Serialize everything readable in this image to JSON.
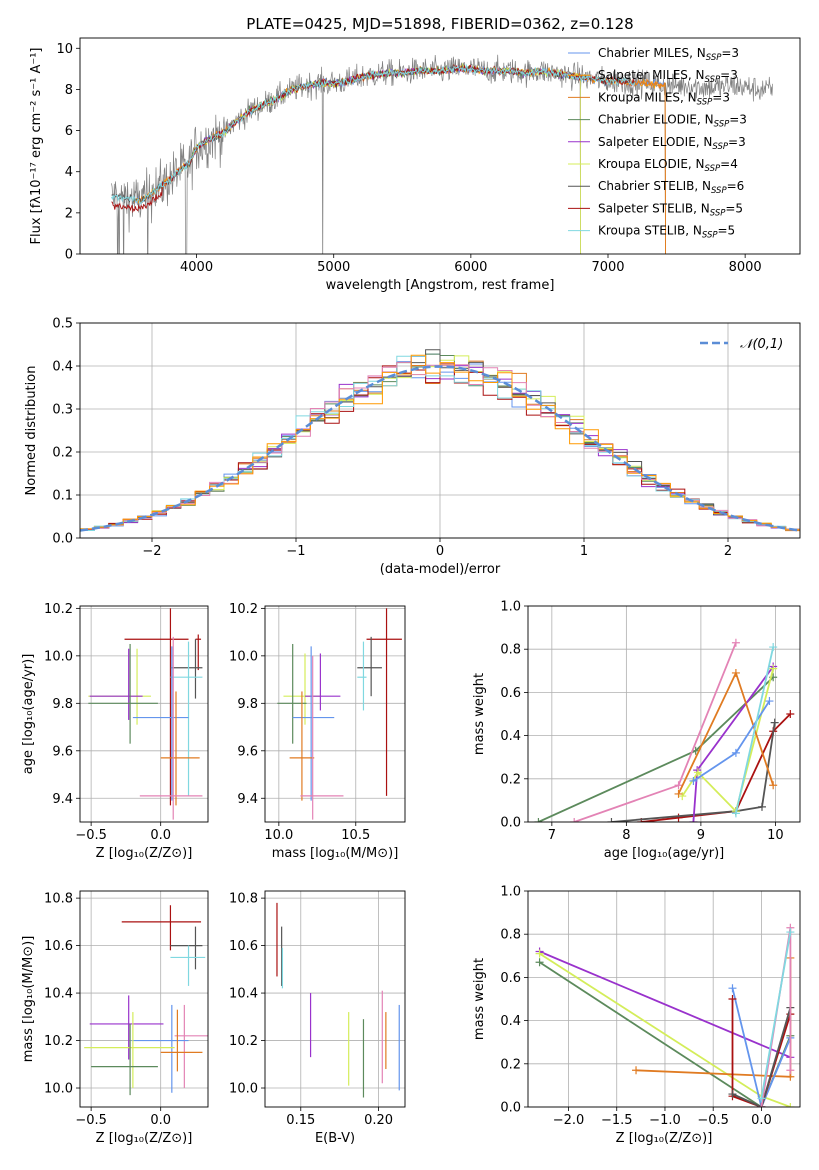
{
  "figure_title": "PLATE=0425, MJD=51898, FIBERID=0362, z=0.128",
  "colors": {
    "Chabrier MILES": "#6495ed",
    "Salpeter MILES": "#ff9900",
    "Kroupa MILES": "#e07b22",
    "Chabrier ELODIE": "#5c8a5c",
    "Salpeter ELODIE": "#9932cc",
    "Kroupa ELODIE": "#d4ed5a",
    "Chabrier STELIB": "#555555",
    "Salpeter STELIB": "#aa1111",
    "Kroupa STELIB": "#80d8e0",
    "hist_pink": "#e383b5",
    "normal": "#5b8dd6"
  },
  "chart_data": [
    {
      "id": "spectrum",
      "type": "line",
      "title": "PLATE=0425, MJD=51898, FIBERID=0362, z=0.128",
      "xlabel": "wavelength [Angstrom, rest frame]",
      "ylabel": "Flux [fλ10⁻¹⁷ erg cm⁻² s⁻¹ A⁻¹]",
      "xlim": [
        3150,
        8400
      ],
      "ylim": [
        0,
        10.5
      ],
      "xticks": [
        4000,
        5000,
        6000,
        7000,
        8000
      ],
      "yticks": [
        0,
        2,
        4,
        6,
        8,
        10
      ],
      "legend_position": "top-right",
      "legend": [
        "Chabrier MILES, N_SSP=3",
        "Salpeter MILES, N_SSP=3",
        "Kroupa MILES, N_SSP=3",
        "Chabrier ELODIE, N_SSP=3",
        "Salpeter ELODIE, N_SSP=3",
        "Kroupa ELODIE, N_SSP=4",
        "Chabrier STELIB, N_SSP=6",
        "Salpeter STELIB, N_SSP=5",
        "Kroupa STELIB, N_SSP=5"
      ],
      "continuum_x": [
        3380,
        3500,
        3600,
        3700,
        3800,
        3900,
        3950,
        4000,
        4100,
        4200,
        4300,
        4400,
        4500,
        4600,
        4700,
        4800,
        4900,
        5000,
        5100,
        5200,
        5300,
        5400,
        5500,
        5600,
        5700,
        5800,
        5900,
        6000,
        6100,
        6200,
        6300,
        6400,
        6500,
        6600,
        6700,
        6800,
        6900,
        7000,
        7100,
        7200,
        7300,
        7400,
        7500,
        7600,
        7700,
        7800,
        7900,
        8000,
        8100,
        8200
      ],
      "continuum_y": [
        2.8,
        2.7,
        2.6,
        3.1,
        3.6,
        4.2,
        4.4,
        5.2,
        5.6,
        5.9,
        6.5,
        7.0,
        7.3,
        7.6,
        8.0,
        8.2,
        8.3,
        8.3,
        8.4,
        8.6,
        8.7,
        8.8,
        8.8,
        8.9,
        8.9,
        8.9,
        9.0,
        9.0,
        8.9,
        8.9,
        8.9,
        8.8,
        8.9,
        8.8,
        8.7,
        8.6,
        8.5,
        8.4,
        8.4,
        8.3,
        8.3,
        8.2,
        8.2,
        8.2,
        8.1,
        8.1,
        8.2,
        8.1,
        8.0,
        8.0
      ]
    },
    {
      "id": "residual_hist",
      "type": "line",
      "xlabel": "(data-model)/error",
      "ylabel": "Normed distribution",
      "xlim": [
        -2.5,
        2.5
      ],
      "ylim": [
        0,
        0.5
      ],
      "xticks": [
        -2,
        -1,
        0,
        1,
        2
      ],
      "yticks": [
        0.0,
        0.1,
        0.2,
        0.3,
        0.4,
        0.5
      ],
      "legend": [
        "𝒩(0,1)"
      ],
      "legend_position": "top-right",
      "bin_width": 0.1,
      "series_count": 10
    },
    {
      "id": "age_vs_Z",
      "type": "scatter",
      "xlabel": "Z [log₁₀(Z/Z⊙)]",
      "ylabel": "age  [log₁₀(age/yr)]",
      "xlim": [
        -0.58,
        0.34
      ],
      "ylim": [
        9.3,
        10.21
      ],
      "xticks": [
        -0.5,
        0.0
      ],
      "yticks": [
        9.4,
        9.6,
        9.8,
        10.0,
        10.2
      ],
      "points": [
        {
          "x": 0.07,
          "y": 10.07,
          "xerr": [
            0.33,
            0.13
          ],
          "yerr": [
            0.7,
            0.13
          ],
          "c": "Salpeter STELIB"
        },
        {
          "x": 0.27,
          "y": 10.07,
          "xerr": [
            0.02,
            0.02
          ],
          "yerr": [
            0.13,
            0.02
          ],
          "c": "Salpeter STELIB"
        },
        {
          "x": 0.25,
          "y": 9.95,
          "xerr": [
            0.18,
            0.05
          ],
          "yerr": [
            0.13,
            0.12
          ],
          "c": "Chabrier STELIB"
        },
        {
          "x": 0.2,
          "y": 9.91,
          "xerr": [
            0.13,
            0.1
          ],
          "yerr": [
            0.5,
            0.15
          ],
          "c": "Kroupa STELIB"
        },
        {
          "x": -0.17,
          "y": 9.83,
          "xerr": [
            0.35,
            0.1
          ],
          "yerr": [
            0.12,
            0.2
          ],
          "c": "Kroupa ELODIE"
        },
        {
          "x": -0.23,
          "y": 9.83,
          "xerr": [
            0.28,
            0.1
          ],
          "yerr": [
            0.1,
            0.2
          ],
          "c": "Salpeter ELODIE"
        },
        {
          "x": -0.22,
          "y": 9.8,
          "xerr": [
            0.3,
            0.2
          ],
          "yerr": [
            0.17,
            0.25
          ],
          "c": "Chabrier ELODIE"
        },
        {
          "x": 0.08,
          "y": 9.74,
          "xerr": [
            0.28,
            0.12
          ],
          "yerr": [
            0.35,
            0.3
          ],
          "c": "Chabrier MILES"
        },
        {
          "x": 0.11,
          "y": 9.57,
          "xerr": [
            0.11,
            0.17
          ],
          "yerr": [
            0.2,
            0.28
          ],
          "c": "Kroupa MILES"
        },
        {
          "x": 0.09,
          "y": 9.41,
          "xerr": [
            0.24,
            0.21
          ],
          "yerr": [
            0.1,
            0.67
          ],
          "c": "hist_pink"
        }
      ]
    },
    {
      "id": "age_vs_mass",
      "type": "scatter",
      "xlabel": "mass [log₁₀(M/M⊙)]",
      "ylabel": "",
      "xlim": [
        9.91,
        10.82
      ],
      "ylim": [
        9.3,
        10.21
      ],
      "xticks": [
        10.0,
        10.5
      ],
      "yticks": [
        9.4,
        9.6,
        9.8,
        10.0,
        10.2
      ],
      "points": [
        {
          "x": 10.7,
          "y": 10.07,
          "xerr": [
            0.13,
            0.1
          ],
          "yerr": [
            0.66,
            0.13
          ],
          "c": "Salpeter STELIB"
        },
        {
          "x": 10.6,
          "y": 9.95,
          "xerr": [
            0.09,
            0.07
          ],
          "yerr": [
            0.12,
            0.13
          ],
          "c": "Chabrier STELIB"
        },
        {
          "x": 10.55,
          "y": 9.91,
          "xerr": [
            0.04,
            0.02
          ],
          "yerr": [
            0.14,
            0.15
          ],
          "c": "Kroupa STELIB"
        },
        {
          "x": 10.17,
          "y": 9.83,
          "xerr": [
            0.14,
            0.1
          ],
          "yerr": [
            0.12,
            0.18
          ],
          "c": "Kroupa ELODIE"
        },
        {
          "x": 10.27,
          "y": 9.83,
          "xerr": [
            0.1,
            0.13
          ],
          "yerr": [
            0.06,
            0.18
          ],
          "c": "Salpeter ELODIE"
        },
        {
          "x": 10.09,
          "y": 9.8,
          "xerr": [
            0.1,
            0.09
          ],
          "yerr": [
            0.17,
            0.25
          ],
          "c": "Chabrier ELODIE"
        },
        {
          "x": 10.21,
          "y": 9.74,
          "xerr": [
            0.12,
            0.15
          ],
          "yerr": [
            0.35,
            0.3
          ],
          "c": "Chabrier MILES"
        },
        {
          "x": 10.15,
          "y": 9.57,
          "xerr": [
            0.08,
            0.08
          ],
          "yerr": [
            0.18,
            0.28
          ],
          "c": "Kroupa MILES"
        },
        {
          "x": 10.22,
          "y": 9.41,
          "xerr": [
            0.08,
            0.2
          ],
          "yerr": [
            0.1,
            0.59
          ],
          "c": "hist_pink"
        }
      ]
    },
    {
      "id": "weight_vs_age",
      "type": "line",
      "xlabel": "age  [log₁₀(age/yr)]",
      "ylabel": "mass weight",
      "xlim": [
        6.68,
        10.33
      ],
      "ylim": [
        0.0,
        1.0
      ],
      "xticks": [
        7,
        8,
        9,
        10
      ],
      "yticks": [
        0.0,
        0.2,
        0.4,
        0.6,
        0.8,
        1.0
      ],
      "series": [
        {
          "c": "Chabrier ELODIE",
          "points": [
            [
              6.82,
              0.0
            ],
            [
              8.93,
              0.33
            ],
            [
              9.97,
              0.67
            ]
          ]
        },
        {
          "c": "hist_pink",
          "points": [
            [
              7.3,
              0.0
            ],
            [
              8.7,
              0.17
            ],
            [
              9.47,
              0.83
            ]
          ]
        },
        {
          "c": "Salpeter STELIB",
          "points": [
            [
              8.2,
              0.0
            ],
            [
              8.7,
              0.02
            ],
            [
              9.47,
              0.05
            ],
            [
              9.97,
              0.42
            ],
            [
              10.2,
              0.5
            ]
          ]
        },
        {
          "c": "Chabrier STELIB",
          "points": [
            [
              7.8,
              0.0
            ],
            [
              9.47,
              0.05
            ],
            [
              9.82,
              0.07
            ],
            [
              9.99,
              0.46
            ]
          ]
        },
        {
          "c": "Salpeter ELODIE",
          "points": [
            [
              8.9,
              0.0
            ],
            [
              8.95,
              0.24
            ],
            [
              9.97,
              0.72
            ]
          ]
        },
        {
          "c": "Kroupa ELODIE",
          "points": [
            [
              8.75,
              0.12
            ],
            [
              8.96,
              0.23
            ],
            [
              9.47,
              0.05
            ],
            [
              9.97,
              0.71
            ]
          ]
        },
        {
          "c": "Kroupa MILES",
          "points": [
            [
              8.7,
              0.13
            ],
            [
              9.47,
              0.69
            ],
            [
              9.97,
              0.17
            ]
          ]
        },
        {
          "c": "Chabrier MILES",
          "points": [
            [
              8.9,
              0.19
            ],
            [
              9.47,
              0.32
            ],
            [
              9.92,
              0.56
            ]
          ]
        },
        {
          "c": "Kroupa STELIB",
          "points": [
            [
              9.47,
              0.04
            ],
            [
              9.97,
              0.81
            ]
          ]
        }
      ]
    },
    {
      "id": "mass_vs_Z",
      "type": "scatter",
      "xlabel": "Z [log₁₀(Z/Z⊙)]",
      "ylabel": "mass [log₁₀(M/M⊙)]",
      "xlim": [
        -0.58,
        0.34
      ],
      "ylim": [
        9.92,
        10.83
      ],
      "xticks": [
        -0.5,
        0.0
      ],
      "yticks": [
        10.0,
        10.2,
        10.4,
        10.6,
        10.8
      ],
      "points": [
        {
          "x": 0.07,
          "y": 10.7,
          "xerr": [
            0.35,
            0.22
          ],
          "yerr": [
            0.12,
            0.07
          ],
          "c": "Salpeter STELIB"
        },
        {
          "x": 0.25,
          "y": 10.6,
          "xerr": [
            0.18,
            0.05
          ],
          "yerr": [
            0.1,
            0.08
          ],
          "c": "Chabrier STELIB"
        },
        {
          "x": 0.2,
          "y": 10.55,
          "xerr": [
            0.13,
            0.12
          ],
          "yerr": [
            0.12,
            0.05
          ],
          "c": "Kroupa STELIB"
        },
        {
          "x": -0.23,
          "y": 10.27,
          "xerr": [
            0.28,
            0.25
          ],
          "yerr": [
            0.15,
            0.12
          ],
          "c": "Salpeter ELODIE"
        },
        {
          "x": 0.17,
          "y": 10.22,
          "xerr": [
            0.07,
            0.17
          ],
          "yerr": [
            0.22,
            0.13
          ],
          "c": "hist_pink"
        },
        {
          "x": 0.08,
          "y": 10.2,
          "xerr": [
            0.29,
            0.12
          ],
          "yerr": [
            0.22,
            0.15
          ],
          "c": "Chabrier MILES"
        },
        {
          "x": -0.2,
          "y": 10.17,
          "xerr": [
            0.35,
            0.3
          ],
          "yerr": [
            0.17,
            0.15
          ],
          "c": "Kroupa ELODIE"
        },
        {
          "x": 0.12,
          "y": 10.15,
          "xerr": [
            0.12,
            0.18
          ],
          "yerr": [
            0.08,
            0.18
          ],
          "c": "Kroupa MILES"
        },
        {
          "x": -0.22,
          "y": 10.09,
          "xerr": [
            0.28,
            0.2
          ],
          "yerr": [
            0.12,
            0.18
          ],
          "c": "Chabrier ELODIE"
        }
      ]
    },
    {
      "id": "mass_vs_ebv",
      "type": "scatter",
      "xlabel": "E(B-V)",
      "ylabel": "",
      "xlim": [
        0.127,
        0.217
      ],
      "ylim": [
        9.92,
        10.83
      ],
      "xticks": [
        0.15,
        0.2
      ],
      "yticks": [
        10.0,
        10.2,
        10.4,
        10.6,
        10.8
      ],
      "points": [
        {
          "x": 0.1347,
          "y": 10.7,
          "xerr": [
            0,
            0
          ],
          "yerr": [
            0.23,
            0.08
          ],
          "c": "Salpeter STELIB"
        },
        {
          "x": 0.1377,
          "y": 10.6,
          "xerr": [
            0,
            0
          ],
          "yerr": [
            0.17,
            0.08
          ],
          "c": "Chabrier STELIB"
        },
        {
          "x": 0.1382,
          "y": 10.52,
          "xerr": [
            0,
            0
          ],
          "yerr": [
            0.1,
            0.07
          ],
          "c": "Kroupa STELIB"
        },
        {
          "x": 0.1563,
          "y": 10.27,
          "xerr": [
            0,
            0
          ],
          "yerr": [
            0.14,
            0.13
          ],
          "c": "Salpeter ELODIE"
        },
        {
          "x": 0.1808,
          "y": 10.17,
          "xerr": [
            0,
            0
          ],
          "yerr": [
            0.16,
            0.15
          ],
          "c": "Kroupa ELODIE"
        },
        {
          "x": 0.1903,
          "y": 10.15,
          "xerr": [
            0,
            0
          ],
          "yerr": [
            0.19,
            0.14
          ],
          "c": "Chabrier ELODIE"
        },
        {
          "x": 0.2024,
          "y": 10.22,
          "xerr": [
            0,
            0
          ],
          "yerr": [
            0.2,
            0.19
          ],
          "c": "hist_pink"
        },
        {
          "x": 0.2047,
          "y": 10.15,
          "xerr": [
            0,
            0
          ],
          "yerr": [
            0.07,
            0.17
          ],
          "c": "Kroupa MILES"
        },
        {
          "x": 0.2133,
          "y": 10.18,
          "xerr": [
            0,
            0
          ],
          "yerr": [
            0.19,
            0.17
          ],
          "c": "Chabrier MILES"
        }
      ]
    },
    {
      "id": "weight_vs_Z",
      "type": "line",
      "xlabel": "Z [log₁₀(Z/Z⊙)]",
      "ylabel": "mass weight",
      "xlim": [
        -2.42,
        0.4
      ],
      "ylim": [
        0.0,
        1.0
      ],
      "xticks": [
        -2.0,
        -1.5,
        -1.0,
        -0.5,
        0.0
      ],
      "yticks": [
        0.0,
        0.2,
        0.4,
        0.6,
        0.8,
        1.0
      ],
      "series": [
        {
          "c": "Salpeter ELODIE",
          "points": [
            [
              -2.3,
              0.72
            ],
            [
              0.3,
              0.23
            ]
          ]
        },
        {
          "c": "Kroupa ELODIE",
          "points": [
            [
              -2.3,
              0.71
            ],
            [
              0.0,
              0.05
            ],
            [
              0.3,
              0.0
            ]
          ]
        },
        {
          "c": "Chabrier ELODIE",
          "points": [
            [
              -2.3,
              0.67
            ],
            [
              0.0,
              0.0
            ],
            [
              0.3,
              0.33
            ]
          ]
        },
        {
          "c": "Kroupa MILES",
          "points": [
            [
              -1.3,
              0.17
            ],
            [
              0.3,
              0.14
            ],
            [
              0.3,
              0.69
            ]
          ]
        },
        {
          "c": "Chabrier MILES",
          "points": [
            [
              -0.3,
              0.55
            ],
            [
              0.0,
              0.0
            ],
            [
              0.3,
              0.32
            ]
          ]
        },
        {
          "c": "Salpeter STELIB",
          "points": [
            [
              -0.3,
              0.5
            ],
            [
              -0.3,
              0.05
            ],
            [
              0.0,
              0.0
            ],
            [
              0.3,
              0.43
            ]
          ]
        },
        {
          "c": "Chabrier STELIB",
          "points": [
            [
              -0.3,
              0.06
            ],
            [
              0.0,
              0.0
            ],
            [
              0.3,
              0.46
            ]
          ]
        },
        {
          "c": "hist_pink",
          "points": [
            [
              0.0,
              0.0
            ],
            [
              0.3,
              0.83
            ],
            [
              0.3,
              0.17
            ]
          ]
        },
        {
          "c": "Kroupa STELIB",
          "points": [
            [
              0.0,
              0.04
            ],
            [
              0.3,
              0.81
            ]
          ]
        }
      ]
    }
  ]
}
